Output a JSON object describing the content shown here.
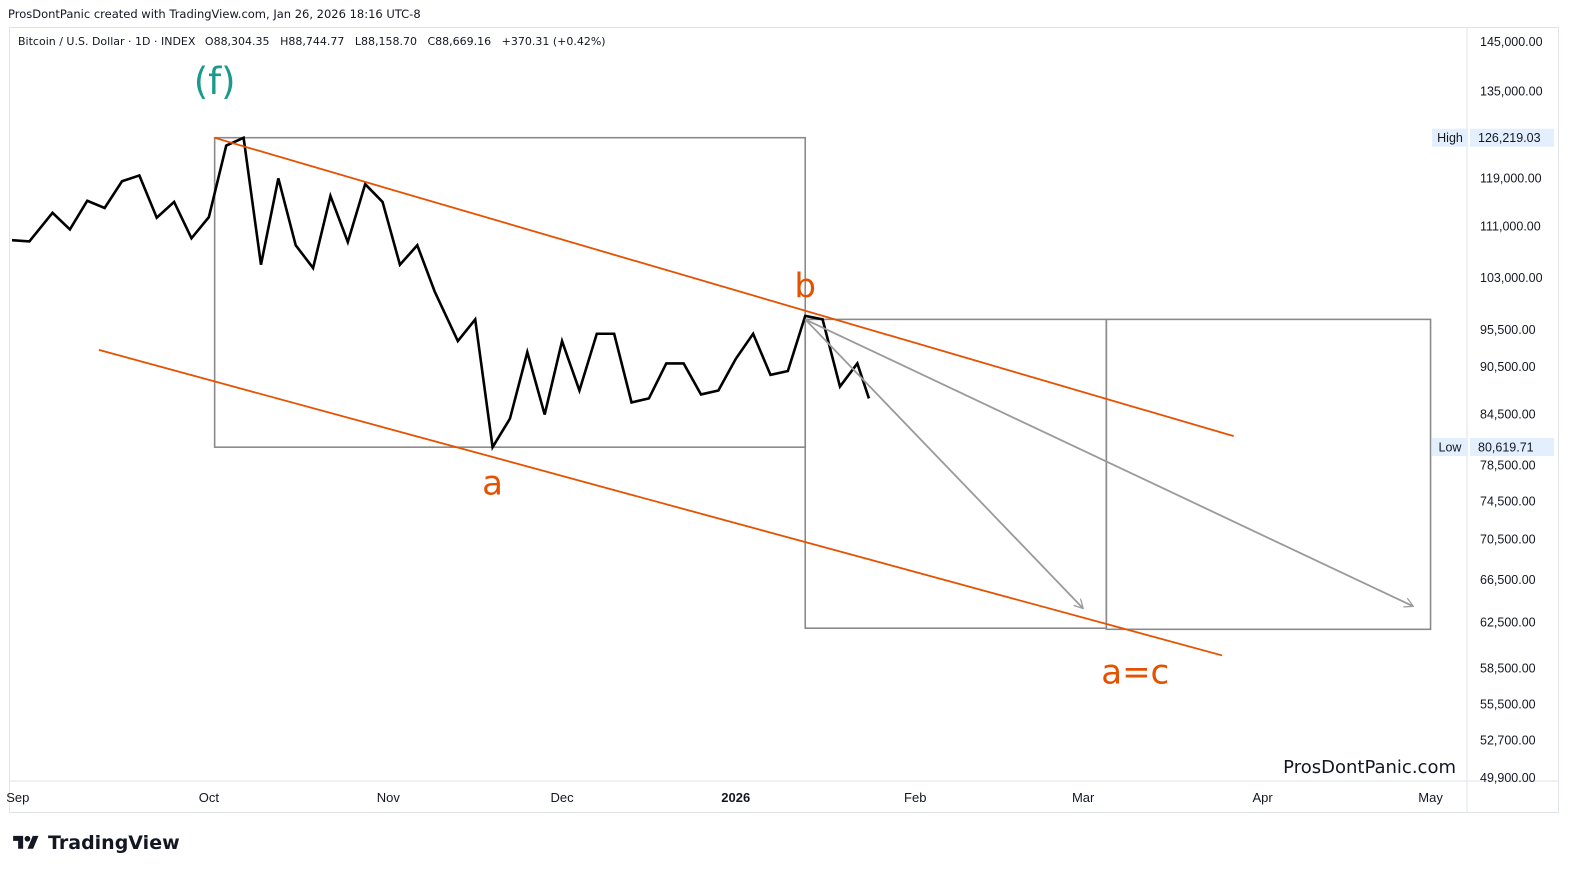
{
  "header": {
    "credit": "ProsDontPanic created with TradingView.com, Jan 26, 2026 18:16 UTC-8"
  },
  "legend": {
    "symbol": "Bitcoin / U.S. Dollar · 1D · INDEX",
    "open": "O88,304.35",
    "high": "H88,744.77",
    "low": "L88,158.70",
    "close": "C88,669.16",
    "change": "+370.31 (+0.42%)"
  },
  "watermark": "ProsDontPanic.com",
  "brand": {
    "name": "TradingView"
  },
  "colors": {
    "price_line": "#000000",
    "channel": "#e65100",
    "box": "#8a8a8a",
    "projection": "#9a9a9a",
    "wave_f": "#1a9a8a",
    "wave_label": "#e65100",
    "badge_bg": "#e3effd"
  },
  "chart_data": {
    "type": "line",
    "title": "",
    "xlabel": "",
    "ylabel": "",
    "x_axis": {
      "ticks": [
        {
          "label": "Sep",
          "bold": false
        },
        {
          "label": "Oct",
          "bold": false
        },
        {
          "label": "Nov",
          "bold": false
        },
        {
          "label": "Dec",
          "bold": false
        },
        {
          "label": "2026",
          "bold": true
        },
        {
          "label": "Feb",
          "bold": false
        },
        {
          "label": "Mar",
          "bold": false
        },
        {
          "label": "Apr",
          "bold": false
        },
        {
          "label": "May",
          "bold": false
        }
      ]
    },
    "y_axis": {
      "scale": "log",
      "ylim": [
        49900,
        145000
      ],
      "ticks": [
        "145,000.00",
        "135,000.00",
        "119,000.00",
        "111,000.00",
        "103,000.00",
        "95,500.00",
        "90,500.00",
        "84,500.00",
        "78,500.00",
        "74,500.00",
        "70,500.00",
        "66,500.00",
        "62,500.00",
        "58,500.00",
        "55,500.00",
        "52,700.00",
        "49,900.00"
      ],
      "markers": [
        {
          "label": "High",
          "value": "126,219.03"
        },
        {
          "label": "Low",
          "value": "80,619.71"
        }
      ]
    },
    "series": [
      {
        "style": "line",
        "x": [
          "2025-09-01",
          "2025-09-04",
          "2025-09-08",
          "2025-09-11",
          "2025-09-14",
          "2025-09-17",
          "2025-09-20",
          "2025-09-23",
          "2025-09-26",
          "2025-09-29",
          "2025-10-02",
          "2025-10-05",
          "2025-10-08",
          "2025-10-11",
          "2025-10-14",
          "2025-10-17",
          "2025-10-20",
          "2025-10-23",
          "2025-10-26",
          "2025-10-29",
          "2025-11-01",
          "2025-11-04",
          "2025-11-07",
          "2025-11-10",
          "2025-11-13",
          "2025-11-17",
          "2025-11-20",
          "2025-11-23",
          "2025-11-26",
          "2025-11-29",
          "2025-12-02",
          "2025-12-05",
          "2025-12-08",
          "2025-12-11",
          "2025-12-14",
          "2025-12-17",
          "2025-12-20",
          "2025-12-23",
          "2025-12-26",
          "2025-12-29",
          "2026-01-01",
          "2026-01-04",
          "2026-01-07",
          "2026-01-10",
          "2026-01-13",
          "2026-01-16",
          "2026-01-19",
          "2026-01-22",
          "2026-01-25",
          "2026-01-27"
        ],
        "values": [
          108800,
          108600,
          113200,
          110500,
          115200,
          114000,
          118500,
          119500,
          112400,
          115000,
          109100,
          112500,
          124800,
          126200,
          105000,
          119000,
          108000,
          104500,
          116000,
          108500,
          118000,
          115000,
          105000,
          108000,
          101000,
          94000,
          97000,
          80600,
          84000,
          92500,
          84500,
          94000,
          87500,
          95000,
          95000,
          86000,
          86500,
          91000,
          91000,
          87000,
          87500,
          91600,
          95000,
          89500,
          90000,
          97500,
          97000,
          88000,
          91000,
          86500
        ]
      },
      {
        "name": "Upper channel",
        "style": "trendline",
        "x": [
          "2025-10-06",
          "2026-03-31"
        ],
        "values": [
          126200,
          81900
        ]
      },
      {
        "name": "Lower channel",
        "style": "trendline",
        "x": [
          "2025-09-16",
          "2026-03-29"
        ],
        "values": [
          92800,
          59600
        ]
      },
      {
        "name": "Projection 1",
        "style": "arrow",
        "x": [
          "2026-01-16",
          "2026-03-05"
        ],
        "values": [
          97000,
          63800
        ]
      },
      {
        "name": "Projection 2",
        "style": "arrow",
        "x": [
          "2026-01-16",
          "2026-05-01"
        ],
        "values": [
          97000,
          64000
        ]
      }
    ],
    "boxes": [
      {
        "x": [
          "2025-10-06",
          "2026-01-16"
        ],
        "y": [
          126219,
          80600
        ]
      },
      {
        "x": [
          "2026-01-16",
          "2026-03-09"
        ],
        "y": [
          97000,
          62000
        ]
      },
      {
        "x": [
          "2026-03-09",
          "2026-05-04"
        ],
        "y": [
          97000,
          61900
        ]
      }
    ],
    "annotations": [
      {
        "text": "(f)",
        "x": "2025-10-06",
        "y": 136500,
        "kind": "wave_f"
      },
      {
        "text": "b",
        "x": "2026-01-16",
        "y": 101500,
        "kind": "wave"
      },
      {
        "text": "a",
        "x": "2025-11-23",
        "y": 76300,
        "kind": "wave"
      },
      {
        "text": "a=c",
        "x": "2026-03-14",
        "y": 58000,
        "kind": "wave"
      }
    ]
  }
}
